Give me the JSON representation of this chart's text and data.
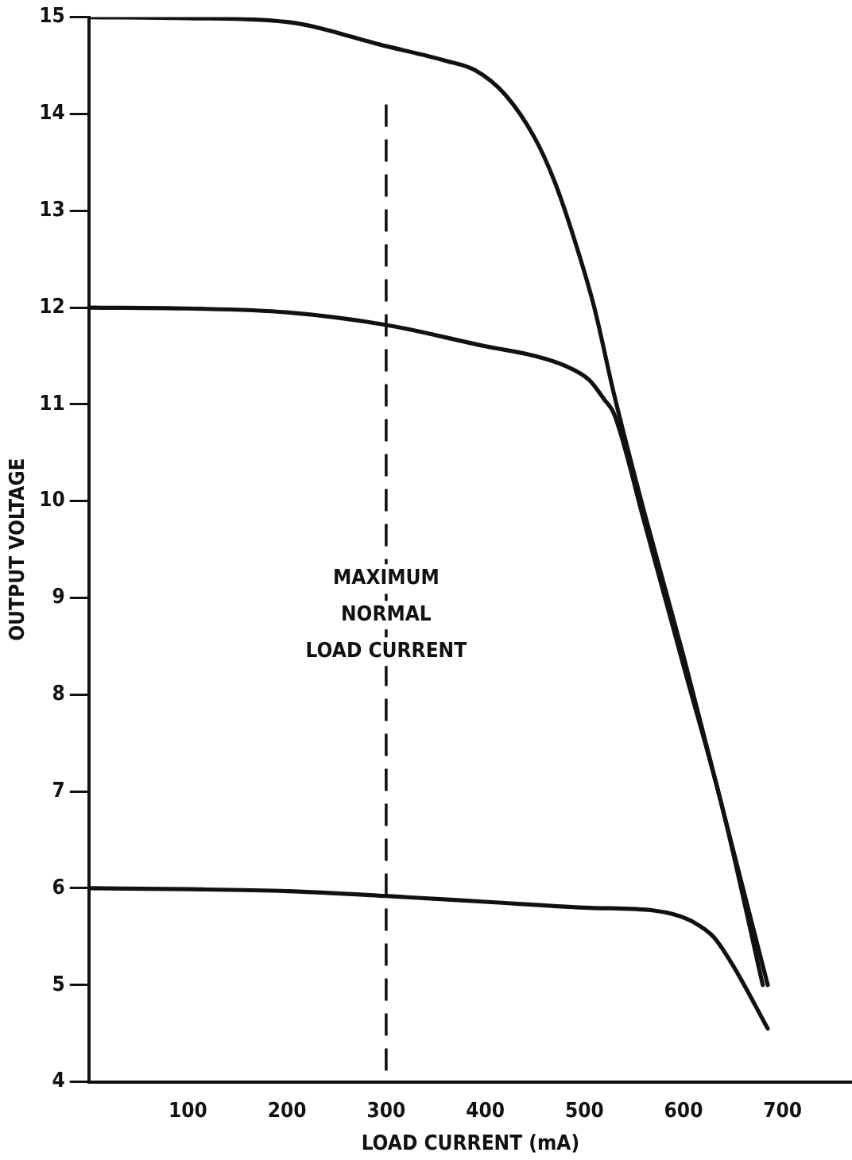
{
  "chart_data": {
    "type": "line",
    "xlabel": "LOAD CURRENT (mA)",
    "ylabel": "OUTPUT VOLTAGE",
    "xlim": [
      0,
      770
    ],
    "ylim": [
      4,
      15
    ],
    "xticks": [
      100,
      200,
      300,
      400,
      500,
      600,
      700
    ],
    "yticks": [
      4,
      5,
      6,
      7,
      8,
      9,
      10,
      11,
      12,
      13,
      14,
      15
    ],
    "grid": false,
    "legend": false,
    "marker": "none",
    "line_style": "solid",
    "series": [
      {
        "color": "#111111",
        "x": [
          0,
          100,
          200,
          300,
          360,
          390,
          420,
          450,
          470,
          490,
          510,
          530,
          560,
          600,
          640,
          685
        ],
        "values": [
          15,
          14.99,
          14.95,
          14.7,
          14.55,
          14.45,
          14.2,
          13.75,
          13.3,
          12.7,
          12.0,
          11.1,
          9.9,
          8.4,
          6.8,
          5.0
        ]
      },
      {
        "color": "#111111",
        "x": [
          0,
          100,
          200,
          300,
          400,
          450,
          480,
          505,
          520,
          530,
          560,
          600,
          640,
          680
        ],
        "values": [
          12,
          11.99,
          11.95,
          11.82,
          11.6,
          11.5,
          11.4,
          11.25,
          11.05,
          10.9,
          9.8,
          8.3,
          6.8,
          5.0
        ]
      },
      {
        "color": "#111111",
        "x": [
          0,
          100,
          200,
          300,
          400,
          500,
          570,
          590,
          610,
          630,
          650,
          685
        ],
        "values": [
          6,
          5.99,
          5.97,
          5.92,
          5.86,
          5.8,
          5.77,
          5.73,
          5.65,
          5.5,
          5.2,
          4.55
        ]
      }
    ],
    "ref_lines": [
      {
        "axis": "x",
        "value": 300,
        "label": "MAXIMUM\nNORMAL\nLOAD CURRENT",
        "line_style": "dashed"
      }
    ]
  }
}
